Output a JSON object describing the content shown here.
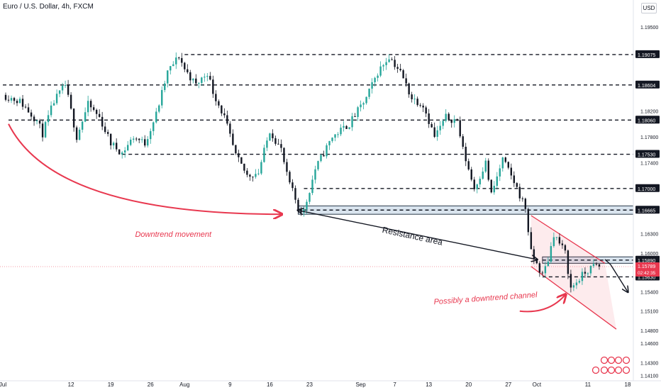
{
  "title": "Euro / U.S. Dollar, 4h, FXCM",
  "currency_button": "USD",
  "colors": {
    "up": "#26a69a",
    "down": "#131722",
    "annotation": "#e8384f",
    "level": "#131722",
    "arrow": "#131722",
    "current_price": "#e8384f",
    "zone_fill": "#d9e4ee"
  },
  "chart_data": {
    "type": "candlestick",
    "symbol": "EUR/USD",
    "timeframe": "4h",
    "source": "FXCM",
    "x_axis": {
      "tick_labels": [
        "Jul",
        "12",
        "19",
        "26",
        "Aug",
        "9",
        "16",
        "23",
        "Sep",
        "7",
        "13",
        "20",
        "27",
        "Oct",
        "11",
        "18"
      ],
      "tick_values": [
        0,
        12,
        19,
        26,
        32,
        40,
        47,
        54,
        63,
        69,
        75,
        82,
        89,
        94,
        103,
        110
      ],
      "range": [
        -0.5,
        111
      ]
    },
    "y_axis": {
      "tick_labels": [
        "1.19500",
        "1.18200",
        "1.17800",
        "1.17400",
        "1.16300",
        "1.16000",
        "1.15400",
        "1.15100",
        "1.14800",
        "1.14600",
        "1.14300",
        "1.14100"
      ],
      "range": [
        1.1402,
        1.1992
      ]
    },
    "price_path": [
      [
        0,
        1.1845
      ],
      [
        3,
        1.1835
      ],
      [
        6,
        1.1805
      ],
      [
        7,
        1.1785
      ],
      [
        9,
        1.1835
      ],
      [
        11,
        1.186
      ],
      [
        13,
        1.178
      ],
      [
        15,
        1.183
      ],
      [
        17,
        1.181
      ],
      [
        19,
        1.177
      ],
      [
        21,
        1.1755
      ],
      [
        23,
        1.178
      ],
      [
        25,
        1.177
      ],
      [
        27,
        1.1815
      ],
      [
        29,
        1.188
      ],
      [
        31,
        1.1905
      ],
      [
        32,
        1.1885
      ],
      [
        34,
        1.186
      ],
      [
        36,
        1.188
      ],
      [
        37,
        1.185
      ],
      [
        39,
        1.181
      ],
      [
        41,
        1.175
      ],
      [
        43,
        1.172
      ],
      [
        45,
        1.1725
      ],
      [
        47,
        1.179
      ],
      [
        49,
        1.176
      ],
      [
        50,
        1.172
      ],
      [
        52,
        1.167
      ],
      [
        53,
        1.1665
      ],
      [
        55,
        1.173
      ],
      [
        58,
        1.178
      ],
      [
        61,
        1.18
      ],
      [
        64,
        1.184
      ],
      [
        66,
        1.188
      ],
      [
        68,
        1.1905
      ],
      [
        70,
        1.188
      ],
      [
        72,
        1.184
      ],
      [
        74,
        1.183
      ],
      [
        76,
        1.178
      ],
      [
        78,
        1.181
      ],
      [
        80,
        1.1805
      ],
      [
        81,
        1.176
      ],
      [
        83,
        1.17
      ],
      [
        85,
        1.174
      ],
      [
        86,
        1.169
      ],
      [
        88,
        1.1745
      ],
      [
        90,
        1.171
      ],
      [
        92,
        1.167
      ],
      [
        93,
        1.16
      ],
      [
        95,
        1.1565
      ],
      [
        96,
        1.159
      ],
      [
        97,
        1.163
      ],
      [
        99,
        1.16
      ],
      [
        100,
        1.1545
      ],
      [
        102,
        1.1565
      ],
      [
        104,
        1.158
      ],
      [
        105,
        1.1579
      ]
    ],
    "price_levels": [
      {
        "label": "1.19075",
        "value": 1.19075,
        "x_start": 32
      },
      {
        "label": "1.18604",
        "value": 1.18604,
        "x_start": 0
      },
      {
        "label": "1.18060",
        "value": 1.1806,
        "x_start": 1
      },
      {
        "label": "1.17530",
        "value": 1.1753,
        "x_start": 21
      },
      {
        "label": "1.17000",
        "value": 1.17,
        "x_start": 53
      },
      {
        "label": "1.16665",
        "value": 1.16665,
        "x_start": 53
      },
      {
        "label": "1.15890",
        "value": 1.1589,
        "x_start": 95
      },
      {
        "label": "1.15630",
        "value": 1.1563,
        "x_start": 95
      }
    ],
    "zones": [
      {
        "from": 1.166,
        "to": 1.1673,
        "x_start": 52
      },
      {
        "from": 1.1584,
        "to": 1.1594,
        "x_start": 95
      }
    ],
    "current_price": {
      "label": "1.15789",
      "value": 1.15789,
      "countdown": "02:42:35"
    },
    "channel": {
      "upper": [
        [
          93,
          1.1658
        ],
        [
          106,
          1.1584
        ]
      ],
      "lower": [
        [
          93,
          1.1579
        ],
        [
          108,
          1.1482
        ]
      ]
    },
    "annotations": [
      {
        "text": "Downtrend movement",
        "x": 30,
        "value": 1.1625
      },
      {
        "text": "Resistance area",
        "x": 72,
        "value": 1.1622,
        "rotate": 12
      },
      {
        "text": "Possibly a downtrend channel",
        "x": 85,
        "value": 1.1526,
        "rotate": -4
      }
    ],
    "arrows": [
      {
        "from": [
          1,
          1.18
        ],
        "to": [
          49,
          1.166
        ],
        "curve": [
          9,
          1.166
        ],
        "color": "annotation"
      },
      {
        "from": [
          52,
          1.1666
        ],
        "to": [
          94,
          1.159
        ],
        "double": true,
        "color": "arrow"
      },
      {
        "from": [
          107,
          1.1582
        ],
        "to": [
          110,
          1.154
        ],
        "via": [
          106,
          1.159
        ],
        "color": "arrow"
      },
      {
        "from": [
          91,
          1.151
        ],
        "to": [
          99,
          1.1535
        ],
        "curve": [
          96,
          1.1505
        ],
        "color": "annotation"
      }
    ]
  }
}
